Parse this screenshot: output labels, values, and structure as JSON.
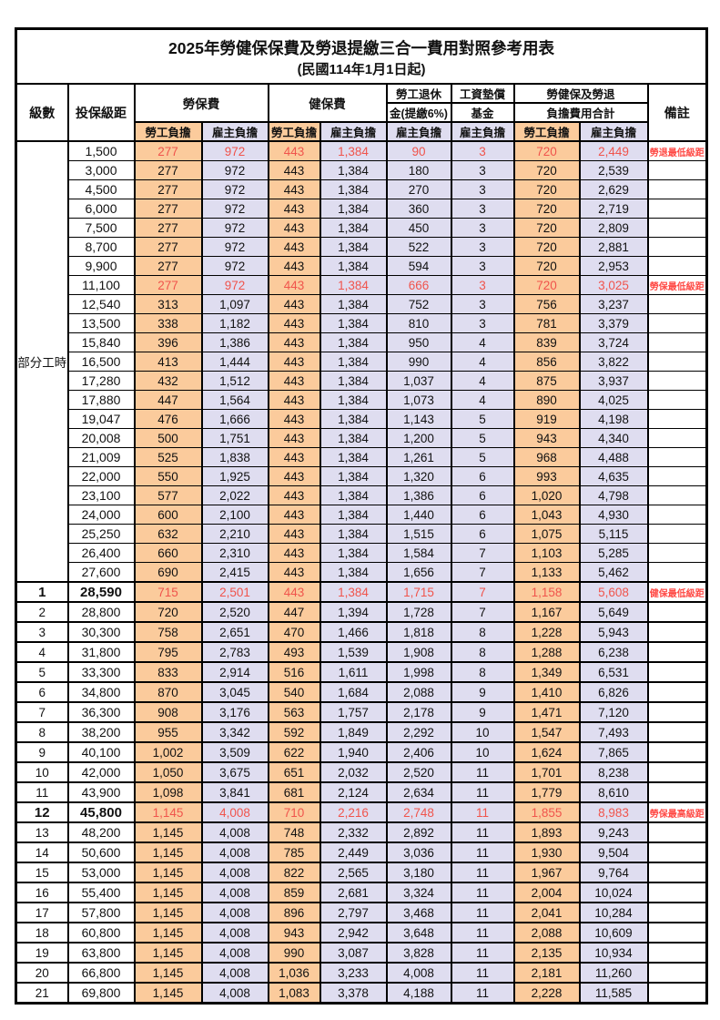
{
  "title": "2025年勞健保保費及勞退提繳三合一費用對照參考用表",
  "subtitle": "(民國114年1月1日起)",
  "colors": {
    "employee_col_bg": "#FBCB9C",
    "employer_col_bg": "#DFDDF0",
    "highlight_red": "#F0544C",
    "remark_red": "#FF4A45",
    "border": "#000000"
  },
  "header": {
    "level": "級數",
    "bracket": "投保級距",
    "labor_ins": "勞保費",
    "health_ins": "健保費",
    "pension_line1": "勞工退休",
    "pension_line2": "金(提繳6%)",
    "wage_fund_line1": "工資墊償",
    "wage_fund_line2": "基金",
    "total_line1": "勞健保及勞退",
    "total_line2": "負擔費用合計",
    "remark": "備註",
    "employee": "勞工負擔",
    "employer": "雇主負擔"
  },
  "part_time_label": "部分工時",
  "rows": [
    {
      "sec": "A",
      "lv": "",
      "br": "1,500",
      "v": [
        "277",
        "972",
        "443",
        "1,384",
        "90",
        "3",
        "720",
        "2,449"
      ],
      "rm": "勞退最低級距",
      "red": true,
      "bold": false
    },
    {
      "sec": "A",
      "lv": "",
      "br": "3,000",
      "v": [
        "277",
        "972",
        "443",
        "1,384",
        "180",
        "3",
        "720",
        "2,539"
      ],
      "rm": "",
      "red": false,
      "bold": false
    },
    {
      "sec": "A",
      "lv": "",
      "br": "4,500",
      "v": [
        "277",
        "972",
        "443",
        "1,384",
        "270",
        "3",
        "720",
        "2,629"
      ],
      "rm": "",
      "red": false,
      "bold": false
    },
    {
      "sec": "A",
      "lv": "",
      "br": "6,000",
      "v": [
        "277",
        "972",
        "443",
        "1,384",
        "360",
        "3",
        "720",
        "2,719"
      ],
      "rm": "",
      "red": false,
      "bold": false
    },
    {
      "sec": "A",
      "lv": "",
      "br": "7,500",
      "v": [
        "277",
        "972",
        "443",
        "1,384",
        "450",
        "3",
        "720",
        "2,809"
      ],
      "rm": "",
      "red": false,
      "bold": false
    },
    {
      "sec": "A",
      "lv": "",
      "br": "8,700",
      "v": [
        "277",
        "972",
        "443",
        "1,384",
        "522",
        "3",
        "720",
        "2,881"
      ],
      "rm": "",
      "red": false,
      "bold": false
    },
    {
      "sec": "A",
      "lv": "",
      "br": "9,900",
      "v": [
        "277",
        "972",
        "443",
        "1,384",
        "594",
        "3",
        "720",
        "2,953"
      ],
      "rm": "",
      "red": false,
      "bold": false
    },
    {
      "sec": "A",
      "lv": "",
      "br": "11,100",
      "v": [
        "277",
        "972",
        "443",
        "1,384",
        "666",
        "3",
        "720",
        "3,025"
      ],
      "rm": "勞保最低級距",
      "red": true,
      "bold": false
    },
    {
      "sec": "A",
      "lv": "",
      "br": "12,540",
      "v": [
        "313",
        "1,097",
        "443",
        "1,384",
        "752",
        "3",
        "756",
        "3,237"
      ],
      "rm": "",
      "red": false,
      "bold": false
    },
    {
      "sec": "A",
      "lv": "",
      "br": "13,500",
      "v": [
        "338",
        "1,182",
        "443",
        "1,384",
        "810",
        "3",
        "781",
        "3,379"
      ],
      "rm": "",
      "red": false,
      "bold": false
    },
    {
      "sec": "A",
      "lv": "",
      "br": "15,840",
      "v": [
        "396",
        "1,386",
        "443",
        "1,384",
        "950",
        "4",
        "839",
        "3,724"
      ],
      "rm": "",
      "red": false,
      "bold": false
    },
    {
      "sec": "A",
      "lv": "",
      "br": "16,500",
      "v": [
        "413",
        "1,444",
        "443",
        "1,384",
        "990",
        "4",
        "856",
        "3,822"
      ],
      "rm": "",
      "red": false,
      "bold": false
    },
    {
      "sec": "A",
      "lv": "",
      "br": "17,280",
      "v": [
        "432",
        "1,512",
        "443",
        "1,384",
        "1,037",
        "4",
        "875",
        "3,937"
      ],
      "rm": "",
      "red": false,
      "bold": false
    },
    {
      "sec": "A",
      "lv": "",
      "br": "17,880",
      "v": [
        "447",
        "1,564",
        "443",
        "1,384",
        "1,073",
        "4",
        "890",
        "4,025"
      ],
      "rm": "",
      "red": false,
      "bold": false
    },
    {
      "sec": "A",
      "lv": "",
      "br": "19,047",
      "v": [
        "476",
        "1,666",
        "443",
        "1,384",
        "1,143",
        "5",
        "919",
        "4,198"
      ],
      "rm": "",
      "red": false,
      "bold": false
    },
    {
      "sec": "A",
      "lv": "",
      "br": "20,008",
      "v": [
        "500",
        "1,751",
        "443",
        "1,384",
        "1,200",
        "5",
        "943",
        "4,340"
      ],
      "rm": "",
      "red": false,
      "bold": false
    },
    {
      "sec": "A",
      "lv": "",
      "br": "21,009",
      "v": [
        "525",
        "1,838",
        "443",
        "1,384",
        "1,261",
        "5",
        "968",
        "4,488"
      ],
      "rm": "",
      "red": false,
      "bold": false
    },
    {
      "sec": "A",
      "lv": "",
      "br": "22,000",
      "v": [
        "550",
        "1,925",
        "443",
        "1,384",
        "1,320",
        "6",
        "993",
        "4,635"
      ],
      "rm": "",
      "red": false,
      "bold": false
    },
    {
      "sec": "A",
      "lv": "",
      "br": "23,100",
      "v": [
        "577",
        "2,022",
        "443",
        "1,384",
        "1,386",
        "6",
        "1,020",
        "4,798"
      ],
      "rm": "",
      "red": false,
      "bold": false
    },
    {
      "sec": "A",
      "lv": "",
      "br": "24,000",
      "v": [
        "600",
        "2,100",
        "443",
        "1,384",
        "1,440",
        "6",
        "1,043",
        "4,930"
      ],
      "rm": "",
      "red": false,
      "bold": false
    },
    {
      "sec": "A",
      "lv": "",
      "br": "25,250",
      "v": [
        "632",
        "2,210",
        "443",
        "1,384",
        "1,515",
        "6",
        "1,075",
        "5,115"
      ],
      "rm": "",
      "red": false,
      "bold": false
    },
    {
      "sec": "A",
      "lv": "",
      "br": "26,400",
      "v": [
        "660",
        "2,310",
        "443",
        "1,384",
        "1,584",
        "7",
        "1,103",
        "5,285"
      ],
      "rm": "",
      "red": false,
      "bold": false
    },
    {
      "sec": "A",
      "lv": "",
      "br": "27,600",
      "v": [
        "690",
        "2,415",
        "443",
        "1,384",
        "1,656",
        "7",
        "1,133",
        "5,462"
      ],
      "rm": "",
      "red": false,
      "bold": false
    },
    {
      "sec": "B",
      "lv": "1",
      "br": "28,590",
      "v": [
        "715",
        "2,501",
        "443",
        "1,384",
        "1,715",
        "7",
        "1,158",
        "5,608"
      ],
      "rm": "健保最低級距",
      "red": true,
      "bold": true
    },
    {
      "sec": "B",
      "lv": "2",
      "br": "28,800",
      "v": [
        "720",
        "2,520",
        "447",
        "1,394",
        "1,728",
        "7",
        "1,167",
        "5,649"
      ],
      "rm": "",
      "red": false,
      "bold": false
    },
    {
      "sec": "B",
      "lv": "3",
      "br": "30,300",
      "v": [
        "758",
        "2,651",
        "470",
        "1,466",
        "1,818",
        "8",
        "1,228",
        "5,943"
      ],
      "rm": "",
      "red": false,
      "bold": false
    },
    {
      "sec": "B",
      "lv": "4",
      "br": "31,800",
      "v": [
        "795",
        "2,783",
        "493",
        "1,539",
        "1,908",
        "8",
        "1,288",
        "6,238"
      ],
      "rm": "",
      "red": false,
      "bold": false
    },
    {
      "sec": "B",
      "lv": "5",
      "br": "33,300",
      "v": [
        "833",
        "2,914",
        "516",
        "1,611",
        "1,998",
        "8",
        "1,349",
        "6,531"
      ],
      "rm": "",
      "red": false,
      "bold": false
    },
    {
      "sec": "B",
      "lv": "6",
      "br": "34,800",
      "v": [
        "870",
        "3,045",
        "540",
        "1,684",
        "2,088",
        "9",
        "1,410",
        "6,826"
      ],
      "rm": "",
      "red": false,
      "bold": false
    },
    {
      "sec": "B",
      "lv": "7",
      "br": "36,300",
      "v": [
        "908",
        "3,176",
        "563",
        "1,757",
        "2,178",
        "9",
        "1,471",
        "7,120"
      ],
      "rm": "",
      "red": false,
      "bold": false
    },
    {
      "sec": "B",
      "lv": "8",
      "br": "38,200",
      "v": [
        "955",
        "3,342",
        "592",
        "1,849",
        "2,292",
        "10",
        "1,547",
        "7,493"
      ],
      "rm": "",
      "red": false,
      "bold": false
    },
    {
      "sec": "B",
      "lv": "9",
      "br": "40,100",
      "v": [
        "1,002",
        "3,509",
        "622",
        "1,940",
        "2,406",
        "10",
        "1,624",
        "7,865"
      ],
      "rm": "",
      "red": false,
      "bold": false
    },
    {
      "sec": "B",
      "lv": "10",
      "br": "42,000",
      "v": [
        "1,050",
        "3,675",
        "651",
        "2,032",
        "2,520",
        "11",
        "1,701",
        "8,238"
      ],
      "rm": "",
      "red": false,
      "bold": false
    },
    {
      "sec": "B",
      "lv": "11",
      "br": "43,900",
      "v": [
        "1,098",
        "3,841",
        "681",
        "2,124",
        "2,634",
        "11",
        "1,779",
        "8,610"
      ],
      "rm": "",
      "red": false,
      "bold": false
    },
    {
      "sec": "B",
      "lv": "12",
      "br": "45,800",
      "v": [
        "1,145",
        "4,008",
        "710",
        "2,216",
        "2,748",
        "11",
        "1,855",
        "8,983"
      ],
      "rm": "勞保最高級距",
      "red": true,
      "bold": true
    },
    {
      "sec": "B",
      "lv": "13",
      "br": "48,200",
      "v": [
        "1,145",
        "4,008",
        "748",
        "2,332",
        "2,892",
        "11",
        "1,893",
        "9,243"
      ],
      "rm": "",
      "red": false,
      "bold": false
    },
    {
      "sec": "B",
      "lv": "14",
      "br": "50,600",
      "v": [
        "1,145",
        "4,008",
        "785",
        "2,449",
        "3,036",
        "11",
        "1,930",
        "9,504"
      ],
      "rm": "",
      "red": false,
      "bold": false
    },
    {
      "sec": "B",
      "lv": "15",
      "br": "53,000",
      "v": [
        "1,145",
        "4,008",
        "822",
        "2,565",
        "3,180",
        "11",
        "1,967",
        "9,764"
      ],
      "rm": "",
      "red": false,
      "bold": false
    },
    {
      "sec": "B",
      "lv": "16",
      "br": "55,400",
      "v": [
        "1,145",
        "4,008",
        "859",
        "2,681",
        "3,324",
        "11",
        "2,004",
        "10,024"
      ],
      "rm": "",
      "red": false,
      "bold": false
    },
    {
      "sec": "B",
      "lv": "17",
      "br": "57,800",
      "v": [
        "1,145",
        "4,008",
        "896",
        "2,797",
        "3,468",
        "11",
        "2,041",
        "10,284"
      ],
      "rm": "",
      "red": false,
      "bold": false
    },
    {
      "sec": "B",
      "lv": "18",
      "br": "60,800",
      "v": [
        "1,145",
        "4,008",
        "943",
        "2,942",
        "3,648",
        "11",
        "2,088",
        "10,609"
      ],
      "rm": "",
      "red": false,
      "bold": false
    },
    {
      "sec": "B",
      "lv": "19",
      "br": "63,800",
      "v": [
        "1,145",
        "4,008",
        "990",
        "3,087",
        "3,828",
        "11",
        "2,135",
        "10,934"
      ],
      "rm": "",
      "red": false,
      "bold": false
    },
    {
      "sec": "B",
      "lv": "20",
      "br": "66,800",
      "v": [
        "1,145",
        "4,008",
        "1,036",
        "3,233",
        "4,008",
        "11",
        "2,181",
        "11,260"
      ],
      "rm": "",
      "red": false,
      "bold": false
    },
    {
      "sec": "B",
      "lv": "21",
      "br": "69,800",
      "v": [
        "1,145",
        "4,008",
        "1,083",
        "3,378",
        "4,188",
        "11",
        "2,228",
        "11,585"
      ],
      "rm": "",
      "red": false,
      "bold": false
    }
  ]
}
